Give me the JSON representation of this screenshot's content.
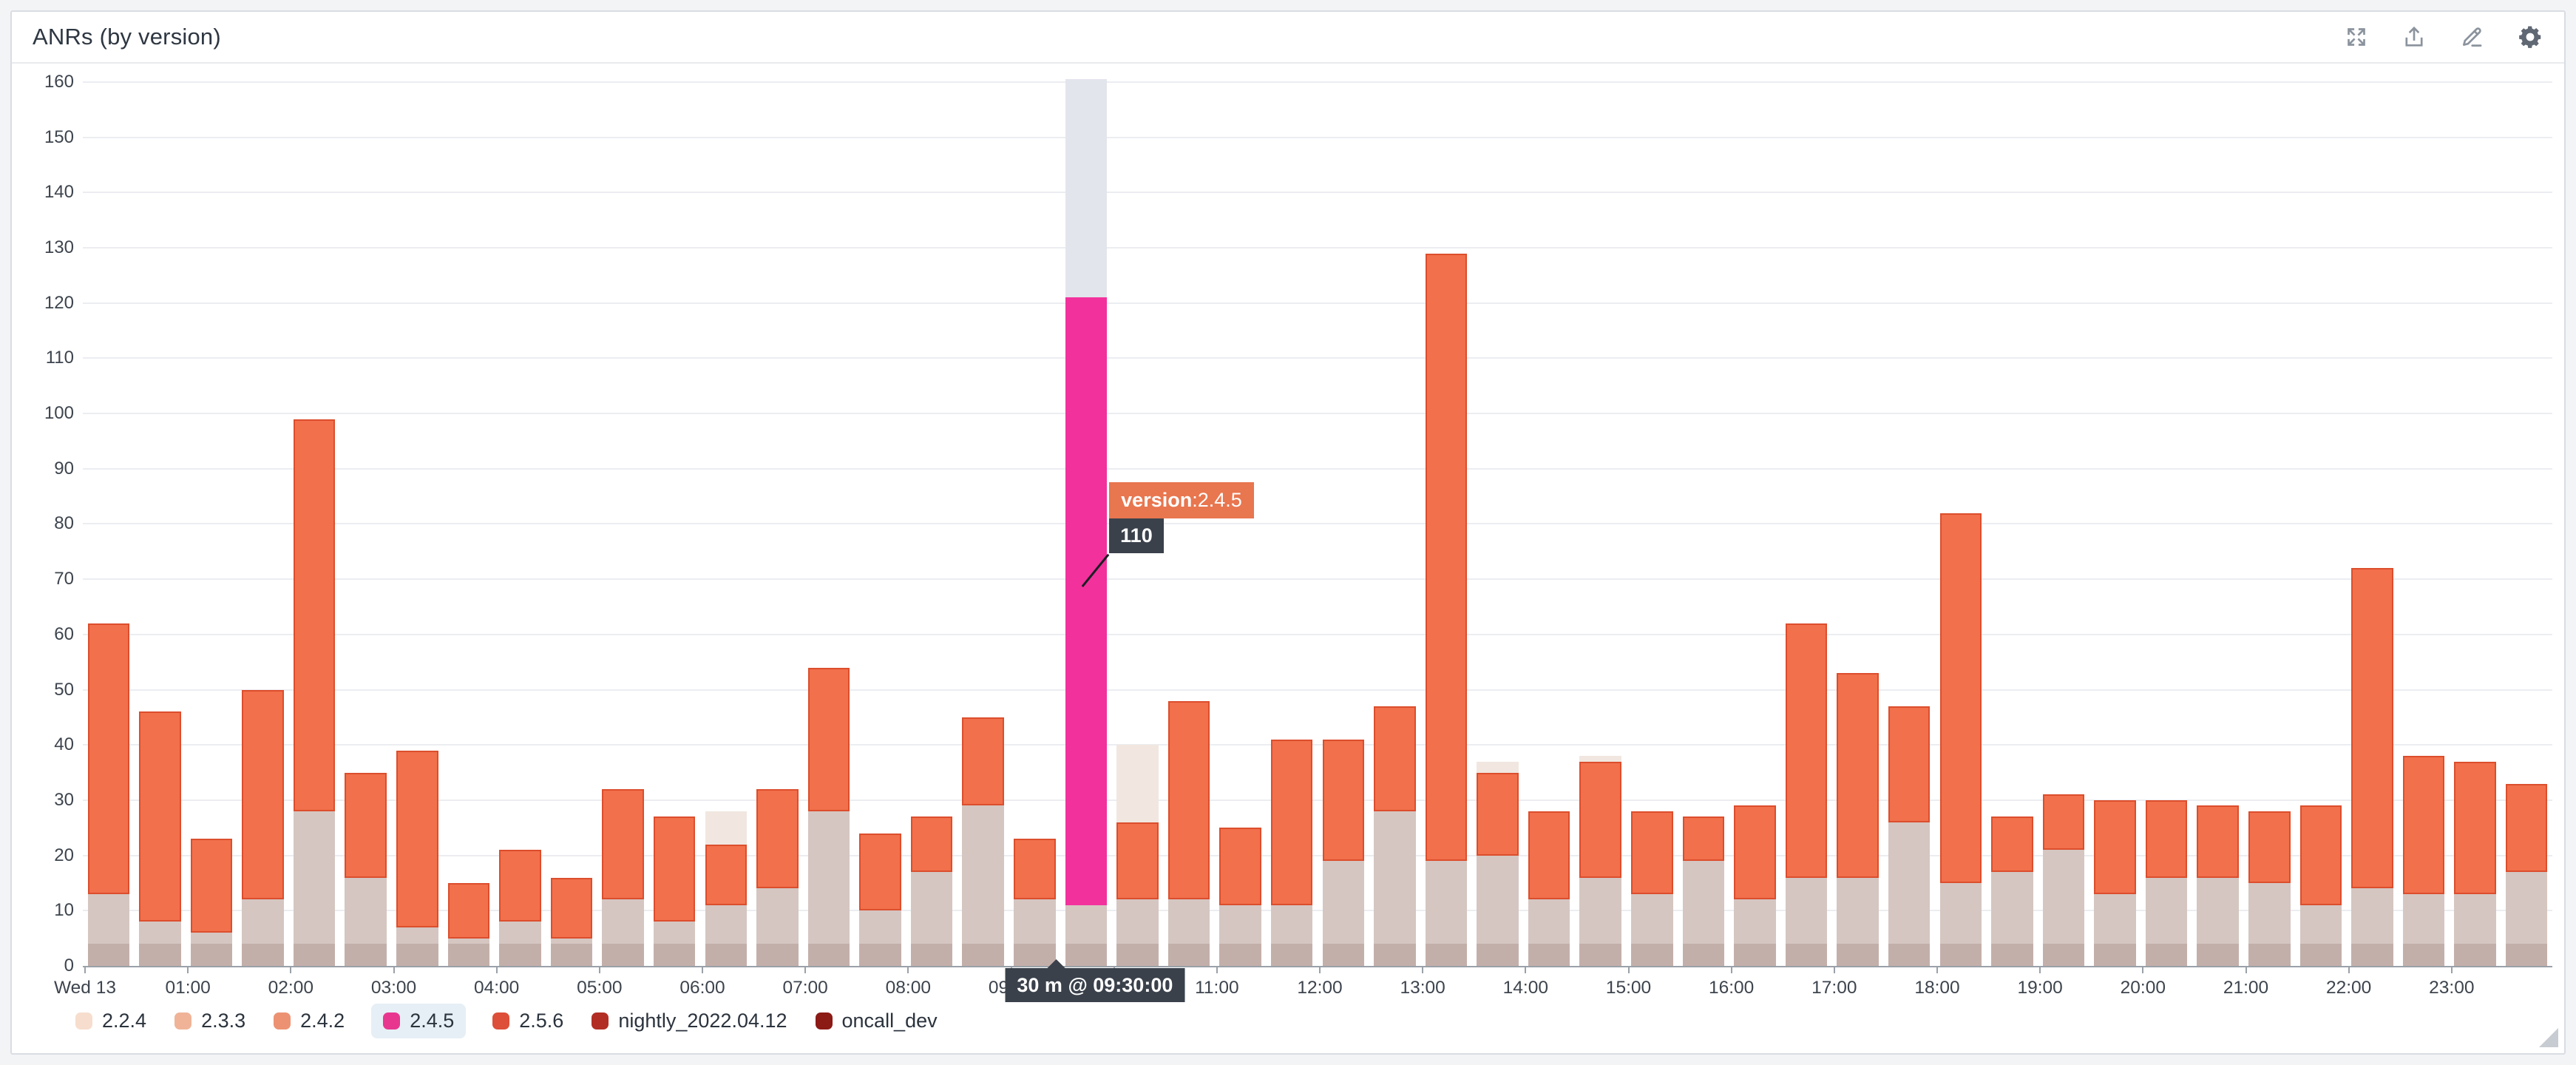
{
  "widget": {
    "title": "ANRs (by version)"
  },
  "toolbar": {
    "icons": [
      "expand-icon",
      "export-icon",
      "edit-icon",
      "settings-icon"
    ]
  },
  "colors": {
    "accent_orange_fill": "#f2704b",
    "accent_orange_border": "#dc4e2d",
    "muted_base_dark": "#c3afaa",
    "muted_base_light": "#d5c6c1",
    "cream_top": "#f1e7e0",
    "highlight_magenta": "#f2319d",
    "highlight_gray": "#e3e5ec",
    "tooltip_chip_bg": "#e8764f",
    "tooltip_dark_bg": "#3a414b",
    "gridline": "#ecedf1",
    "axis": "#9aa1a8",
    "axis_text": "#3d444d",
    "legend_highlight_bg": "#e6eff5",
    "card_border": "#d9dce1",
    "page_bg": "#f3f4f6"
  },
  "tooltip": {
    "series_prefix": "version",
    "series_suffix": ":2.4.5",
    "value": "110",
    "time_label": "30 m @ 09:30:00"
  },
  "legend": [
    {
      "label": "2.2.4",
      "color": "#f7ddcd",
      "highlighted": false
    },
    {
      "label": "2.3.3",
      "color": "#f0b397",
      "highlighted": false
    },
    {
      "label": "2.4.2",
      "color": "#ec9273",
      "highlighted": false
    },
    {
      "label": "2.4.5",
      "color": "#e8368f",
      "highlighted": true
    },
    {
      "label": "2.5.6",
      "color": "#dd4f38",
      "highlighted": false
    },
    {
      "label": "nightly_2022.04.12",
      "color": "#b22e24",
      "highlighted": false
    },
    {
      "label": "oncall_dev",
      "color": "#8c1a15",
      "highlighted": false
    }
  ],
  "chart_data": {
    "type": "bar",
    "stacked": true,
    "title": "ANRs (by version)",
    "bucket_minutes": 30,
    "ylim": [
      0,
      160
    ],
    "y_tick_step": 10,
    "grid": "horizontal",
    "legend_position": "bottom",
    "x_axis_labels": [
      "Wed 13",
      "01:00",
      "02:00",
      "03:00",
      "04:00",
      "05:00",
      "06:00",
      "07:00",
      "08:00",
      "09:00",
      "10:00",
      "11:00",
      "12:00",
      "13:00",
      "14:00",
      "15:00",
      "16:00",
      "17:00",
      "18:00",
      "19:00",
      "20:00",
      "21:00",
      "22:00",
      "23:00"
    ],
    "bar_keys": {
      "t": "time",
      "b": "muted lower-version stack top",
      "o": "stack top incl 2.5.6 (orange)",
      "c": "stack top incl 2.2.4 (cream)"
    },
    "hovered": {
      "index": 19,
      "time": "09:30:00",
      "series": "2.4.5",
      "value": 110,
      "stack_below": 11,
      "stack_top": 121,
      "clip": 160.5
    },
    "bars": [
      {
        "t": "00:00",
        "b": 13,
        "o": 62
      },
      {
        "t": "00:30",
        "b": 8,
        "o": 46
      },
      {
        "t": "01:00",
        "b": 6,
        "o": 23
      },
      {
        "t": "01:30",
        "b": 12,
        "o": 50
      },
      {
        "t": "02:00",
        "b": 28,
        "o": 99
      },
      {
        "t": "02:30",
        "b": 16,
        "o": 35
      },
      {
        "t": "03:00",
        "b": 7,
        "o": 39
      },
      {
        "t": "03:30",
        "b": 5,
        "o": 15
      },
      {
        "t": "04:00",
        "b": 8,
        "o": 21
      },
      {
        "t": "04:30",
        "b": 5,
        "o": 16
      },
      {
        "t": "05:00",
        "b": 12,
        "o": 32
      },
      {
        "t": "05:30",
        "b": 8,
        "o": 27
      },
      {
        "t": "06:00",
        "b": 11,
        "o": 22,
        "c": 28
      },
      {
        "t": "06:30",
        "b": 14,
        "o": 32
      },
      {
        "t": "07:00",
        "b": 28,
        "o": 54
      },
      {
        "t": "07:30",
        "b": 10,
        "o": 24
      },
      {
        "t": "08:00",
        "b": 17,
        "o": 27
      },
      {
        "t": "08:30",
        "b": 29,
        "o": 45
      },
      {
        "t": "09:00",
        "b": 12,
        "o": 23
      },
      {
        "t": "09:30",
        "highlight": true,
        "below": 11,
        "value": 110,
        "top": 121,
        "clip": 160.5
      },
      {
        "t": "10:00",
        "b": 12,
        "o": 26,
        "c": 40
      },
      {
        "t": "10:30",
        "b": 12,
        "o": 48
      },
      {
        "t": "11:00",
        "b": 11,
        "o": 25
      },
      {
        "t": "11:30",
        "b": 11,
        "o": 41
      },
      {
        "t": "12:00",
        "b": 19,
        "o": 41
      },
      {
        "t": "12:30",
        "b": 28,
        "o": 47
      },
      {
        "t": "13:00",
        "b": 19,
        "o": 129
      },
      {
        "t": "13:30",
        "b": 20,
        "o": 35,
        "c": 37
      },
      {
        "t": "14:00",
        "b": 12,
        "o": 28
      },
      {
        "t": "14:30",
        "b": 16,
        "o": 37,
        "c": 38
      },
      {
        "t": "15:00",
        "b": 13,
        "o": 28
      },
      {
        "t": "15:30",
        "b": 19,
        "o": 27
      },
      {
        "t": "16:00",
        "b": 12,
        "o": 29
      },
      {
        "t": "16:30",
        "b": 16,
        "o": 62
      },
      {
        "t": "17:00",
        "b": 16,
        "o": 53
      },
      {
        "t": "17:30",
        "b": 26,
        "o": 47
      },
      {
        "t": "18:00",
        "b": 15,
        "o": 82
      },
      {
        "t": "18:30",
        "b": 17,
        "o": 27
      },
      {
        "t": "19:00",
        "b": 21,
        "o": 31
      },
      {
        "t": "19:30",
        "b": 13,
        "o": 30
      },
      {
        "t": "20:00",
        "b": 16,
        "o": 30
      },
      {
        "t": "20:30",
        "b": 16,
        "o": 29
      },
      {
        "t": "21:00",
        "b": 15,
        "o": 28
      },
      {
        "t": "21:30",
        "b": 11,
        "o": 29
      },
      {
        "t": "22:00",
        "b": 14,
        "o": 72
      },
      {
        "t": "22:30",
        "b": 13,
        "o": 38
      },
      {
        "t": "23:00",
        "b": 13,
        "o": 37
      },
      {
        "t": "23:30",
        "b": 17,
        "o": 33
      }
    ]
  }
}
